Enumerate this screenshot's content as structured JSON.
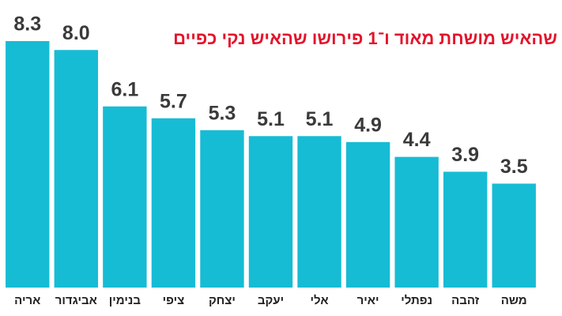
{
  "chart_data": {
    "type": "bar",
    "subtitle": "שהאיש מושחת מאוד ו־1 פירושו שהאיש נקי כפיים",
    "categories": [
      "אריה",
      "אביגדור",
      "בנימין",
      "ציפי",
      "יצחק",
      "יעקב",
      "אלי",
      "יאיר",
      "נפתלי",
      "זהבה",
      "משה"
    ],
    "values": [
      8.3,
      8.0,
      6.1,
      5.7,
      5.3,
      5.1,
      5.1,
      4.9,
      4.4,
      3.9,
      3.5
    ],
    "value_labels": [
      "8.3",
      "8.0",
      "6.1",
      "5.7",
      "5.3",
      "5.1",
      "5.1",
      "4.9",
      "4.4",
      "3.9",
      "3.5"
    ],
    "color": "#16bcd4",
    "ylim": [
      0,
      8.3
    ]
  }
}
